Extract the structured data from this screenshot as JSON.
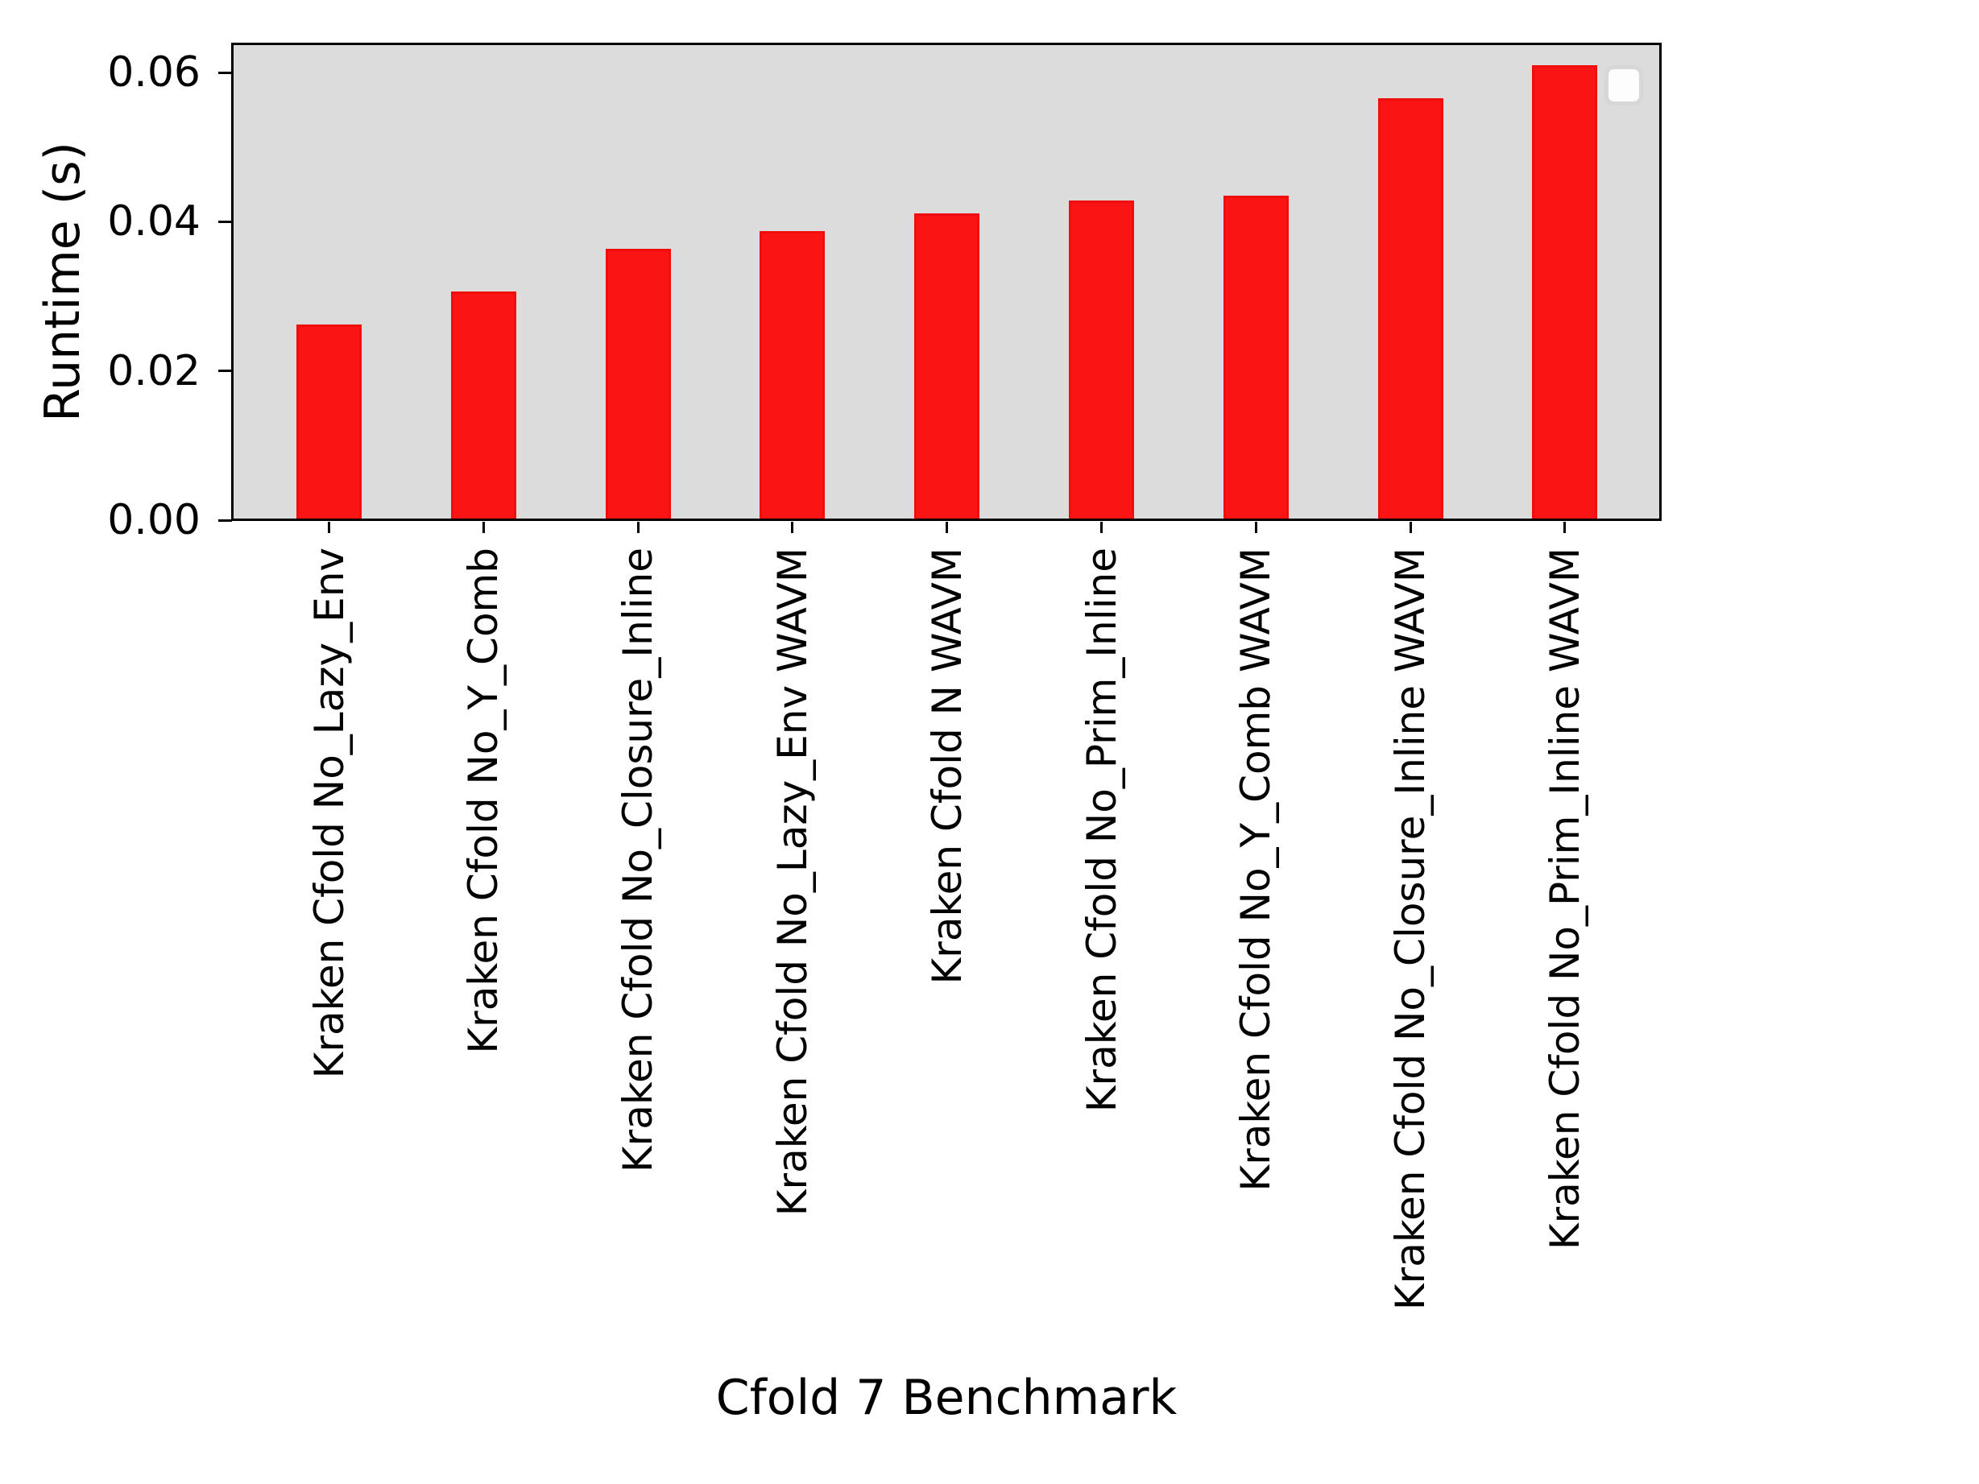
{
  "chart_data": {
    "type": "bar",
    "title": "",
    "xlabel": "Cfold 7 Benchmark",
    "ylabel": "Runtime (s)",
    "categories": [
      "Kraken Cfold No_Lazy_Env",
      "Kraken Cfold No_Y_Comb",
      "Kraken Cfold No_Closure_Inline",
      "Kraken Cfold No_Lazy_Env WAVM",
      "Kraken Cfold N WAVM",
      "Kraken Cfold No_Prim_Inline",
      "Kraken Cfold No_Y_Comb WAVM",
      "Kraken Cfold No_Closure_Inline WAVM",
      "Kraken Cfold No_Prim_Inline WAVM"
    ],
    "values": [
      0.0262,
      0.0307,
      0.0364,
      0.0387,
      0.0411,
      0.0429,
      0.0435,
      0.0566,
      0.061
    ],
    "ytick_labels": [
      "0.00",
      "0.02",
      "0.04",
      "0.06"
    ],
    "ytick_values": [
      0.0,
      0.02,
      0.04,
      0.06
    ],
    "ylim": [
      0,
      0.0638
    ],
    "grid": false,
    "legend": {
      "visible": true,
      "entries": []
    },
    "bar_color": "#fa1414",
    "bar_edge_color": "#f20d0d",
    "plot_background_color": "#dcdcdc",
    "axis_color": "#000000"
  }
}
